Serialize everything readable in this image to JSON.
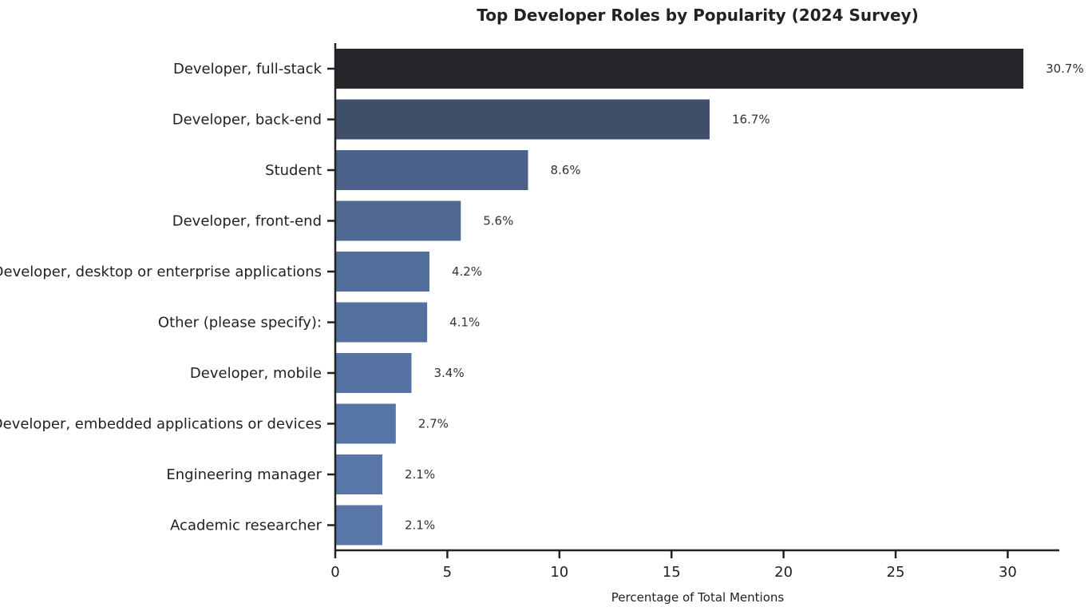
{
  "chart_data": {
    "type": "bar",
    "orientation": "horizontal",
    "title": "Top Developer Roles by Popularity (2024 Survey)",
    "xlabel": "Percentage of Total Mentions",
    "ylabel": "",
    "xlim": [
      0,
      32.3
    ],
    "xticks": [
      0,
      5,
      10,
      15,
      20,
      25,
      30
    ],
    "categories": [
      "Developer, full-stack",
      "Developer, back-end",
      "Student",
      "Developer, front-end",
      "Developer, desktop or enterprise applications",
      "Other (please specify):",
      "Developer, mobile",
      "Developer, embedded applications or devices",
      "Engineering manager",
      "Academic researcher"
    ],
    "values": [
      30.7,
      16.7,
      8.6,
      5.6,
      4.2,
      4.1,
      3.4,
      2.7,
      2.1,
      2.1
    ],
    "value_labels": [
      "30.7%",
      "16.7%",
      "8.6%",
      "5.6%",
      "4.2%",
      "4.1%",
      "3.4%",
      "2.7%",
      "2.1%",
      "2.1%"
    ],
    "bar_colors": [
      "#25272b",
      "#3f4e69",
      "#4c6189",
      "#506a94",
      "#526e9b",
      "#54709e",
      "#5572a2",
      "#5674a5",
      "#5876a8",
      "#5876a8"
    ],
    "grid": false,
    "legend": "none"
  }
}
